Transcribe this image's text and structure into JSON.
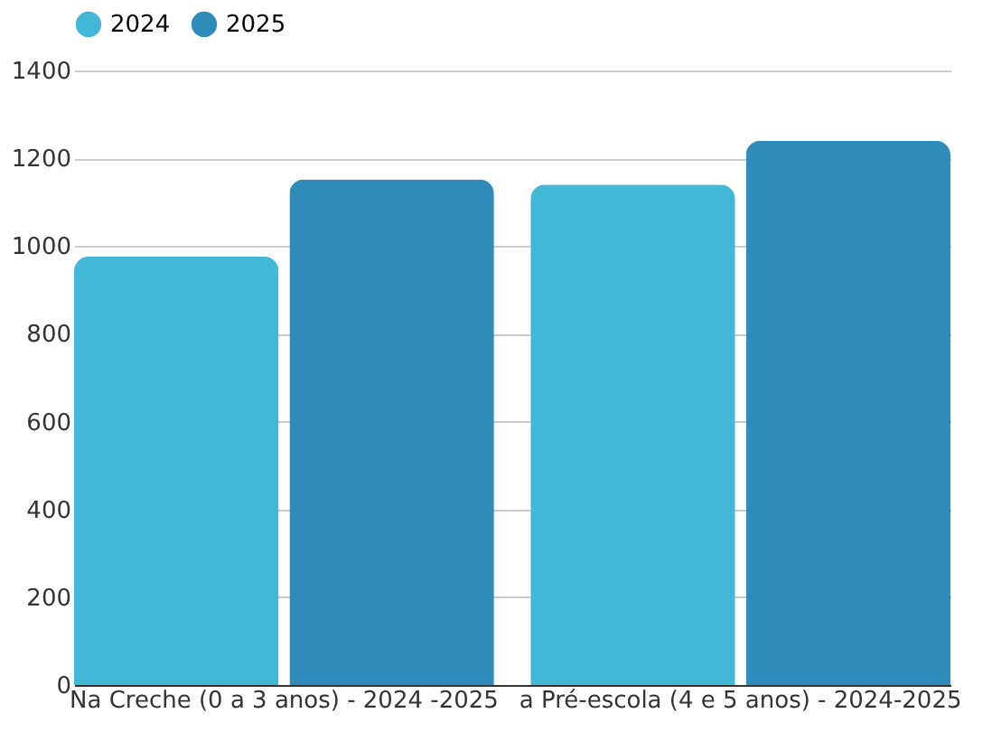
{
  "chart_data": {
    "type": "bar",
    "categories": [
      "Na Creche (0 a 3 anos) - 2024 -2025",
      "a Pré-escola (4 e 5 anos) - 2024-2025"
    ],
    "series": [
      {
        "name": "2024",
        "color": "#42b7d6",
        "values": [
          976,
          1140
        ]
      },
      {
        "name": "2025",
        "color": "#2e8bba",
        "values": [
          1152,
          1240
        ]
      }
    ],
    "ylim": [
      0,
      1400
    ],
    "yticks": [
      0,
      200,
      400,
      600,
      800,
      1000,
      1200,
      1400
    ],
    "grid": "y",
    "legend": "top"
  }
}
